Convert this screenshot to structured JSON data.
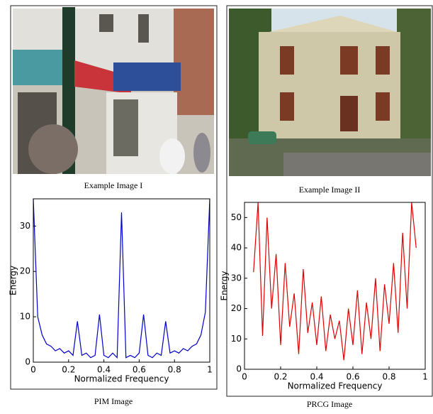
{
  "figure": {
    "panels": [
      {
        "image_caption": "Example Image I",
        "caption": "PIM Image"
      },
      {
        "image_caption": "Example Image II",
        "caption": "PRCG Image"
      }
    ]
  },
  "chart_data": [
    {
      "type": "line",
      "xlabel": "Normalized Frequency",
      "ylabel": "Energy",
      "color": "#0000cc",
      "xlim": [
        0,
        1
      ],
      "ylim": [
        0,
        36
      ],
      "xticks": [
        0,
        0.2,
        0.4,
        0.6,
        0.8,
        1
      ],
      "yticks": [
        0,
        10,
        20,
        30
      ],
      "x": [
        0,
        0.025,
        0.05,
        0.075,
        0.1,
        0.125,
        0.15,
        0.175,
        0.2,
        0.225,
        0.25,
        0.275,
        0.3,
        0.325,
        0.35,
        0.375,
        0.4,
        0.425,
        0.45,
        0.475,
        0.5,
        0.525,
        0.55,
        0.575,
        0.6,
        0.625,
        0.65,
        0.675,
        0.7,
        0.725,
        0.75,
        0.775,
        0.8,
        0.825,
        0.85,
        0.875,
        0.9,
        0.925,
        0.95,
        0.975,
        1
      ],
      "values": [
        36,
        10,
        6,
        4,
        3.5,
        2.5,
        3,
        2,
        2.5,
        1.5,
        9,
        1.5,
        2,
        1,
        1.5,
        10.5,
        1.5,
        1,
        2,
        1,
        33,
        1,
        1.5,
        1,
        2,
        10.5,
        1.5,
        1,
        2,
        1.5,
        9,
        2,
        2.5,
        2,
        3,
        2.5,
        3.5,
        4,
        6,
        11,
        36
      ]
    },
    {
      "type": "line",
      "xlabel": "Normalized Frequency",
      "ylabel": "Energy",
      "color": "#dd0000",
      "xlim": [
        0,
        1
      ],
      "ylim": [
        0,
        55
      ],
      "xticks": [
        0,
        0.2,
        0.4,
        0.6,
        0.8,
        1
      ],
      "yticks": [
        0,
        10,
        20,
        30,
        40,
        50
      ],
      "x": [
        0.05,
        0.075,
        0.1,
        0.125,
        0.15,
        0.175,
        0.2,
        0.225,
        0.25,
        0.275,
        0.3,
        0.325,
        0.35,
        0.375,
        0.4,
        0.425,
        0.45,
        0.475,
        0.5,
        0.525,
        0.55,
        0.575,
        0.6,
        0.625,
        0.65,
        0.675,
        0.7,
        0.725,
        0.75,
        0.775,
        0.8,
        0.825,
        0.85,
        0.875,
        0.9,
        0.925,
        0.95
      ],
      "values": [
        32,
        55,
        11,
        50,
        20,
        38,
        8,
        35,
        14,
        25,
        5,
        33,
        12,
        22,
        8,
        24,
        6,
        18,
        10,
        16,
        3,
        20,
        8,
        26,
        5,
        22,
        10,
        30,
        6,
        28,
        15,
        35,
        12,
        45,
        20,
        55,
        40
      ]
    }
  ]
}
